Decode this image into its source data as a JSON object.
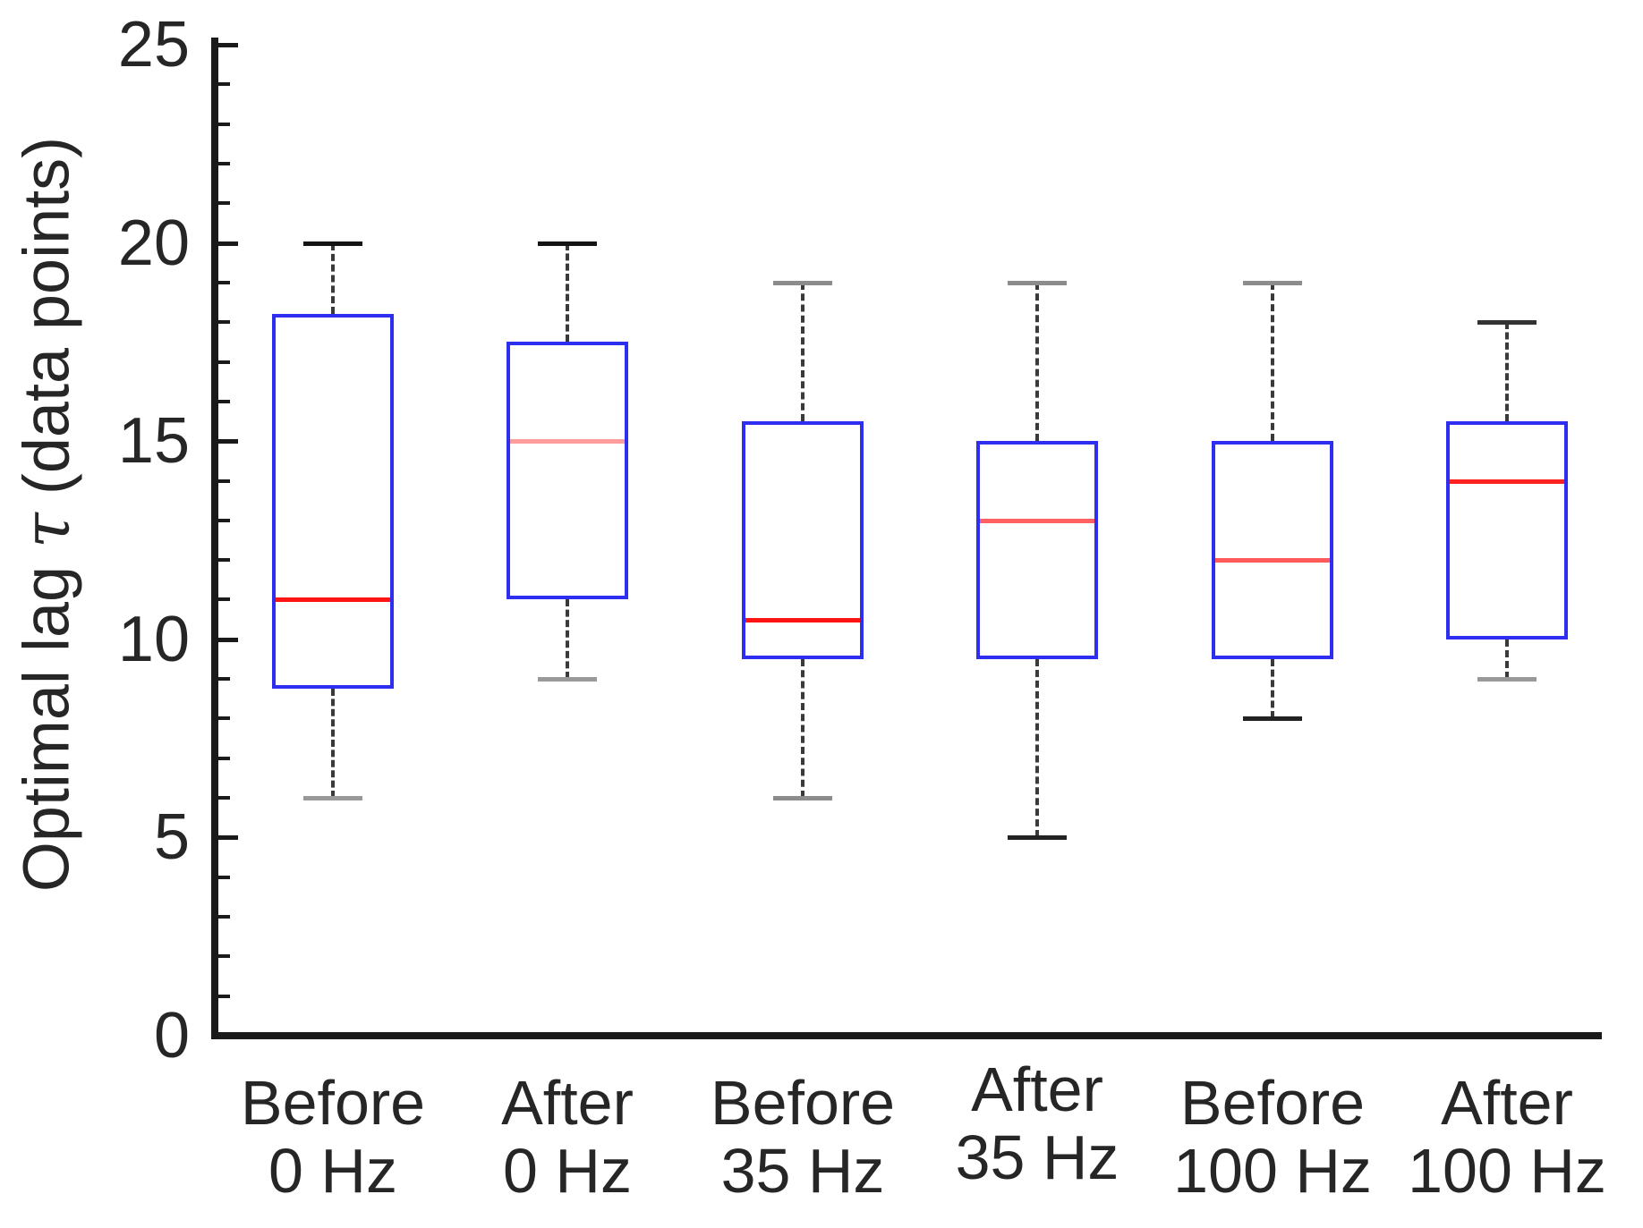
{
  "figure": {
    "background_color": "#ffffff",
    "axis_color": "#1a1a1a",
    "text_color": "#262626",
    "box_edge_color": "#2e2ef0",
    "whisker_color": "#3a3a3a"
  },
  "chart_data": {
    "type": "boxplot",
    "title": "",
    "xlabel": "",
    "ylabel": "Optimal lag τ (data points)",
    "ylabel_parts": {
      "pre": "Optimal lag ",
      "tau": "τ",
      "post": " (data points)"
    },
    "ylim": [
      0,
      25.3
    ],
    "y_major_ticks": [
      0,
      5,
      10,
      15,
      20,
      25
    ],
    "y_minor_tick_step": 1,
    "grid": false,
    "legend": "none",
    "categories": [
      "Before 0 Hz",
      "After 0 Hz",
      "Before 35 Hz",
      "After 35 Hz",
      "Before 100 Hz",
      "After 100 Hz"
    ],
    "boxes": [
      {
        "label_line1": "Before",
        "label_line2": "0 Hz",
        "whisker_low": 6,
        "q1": 8.75,
        "median": 11,
        "q3": 18.2,
        "whisker_high": 20,
        "median_color": "#ff1414",
        "cap_top_color": "#141414",
        "cap_bottom_color": "#999999"
      },
      {
        "label_line1": "After",
        "label_line2": "0 Hz",
        "whisker_low": 9,
        "q1": 11,
        "median": 15,
        "q3": 17.5,
        "whisker_high": 20,
        "median_color": "#ff9c9c",
        "cap_top_color": "#141414",
        "cap_bottom_color": "#999999"
      },
      {
        "label_line1": "Before",
        "label_line2": "35 Hz",
        "whisker_low": 6,
        "q1": 9.5,
        "median": 10.5,
        "q3": 15.5,
        "whisker_high": 19,
        "median_color": "#ff1414",
        "cap_top_color": "#8c8c8c",
        "cap_bottom_color": "#8c8c8c"
      },
      {
        "label_line1": "After",
        "label_line2": "35 Hz",
        "whisker_low": 5,
        "q1": 9.5,
        "median": 13,
        "q3": 15,
        "whisker_high": 19,
        "median_color": "#ff6060",
        "cap_top_color": "#8c8c8c",
        "cap_bottom_color": "#222222"
      },
      {
        "label_line1": "Before",
        "label_line2": "100 Hz",
        "whisker_low": 8,
        "q1": 9.5,
        "median": 12,
        "q3": 15,
        "whisker_high": 19,
        "median_color": "#ff5a5a",
        "cap_top_color": "#8c8c8c",
        "cap_bottom_color": "#222222"
      },
      {
        "label_line1": "After",
        "label_line2": "100 Hz",
        "whisker_low": 9,
        "q1": 10,
        "median": 14,
        "q3": 15.5,
        "whisker_high": 18,
        "median_color": "#ff2020",
        "cap_top_color": "#333333",
        "cap_bottom_color": "#999999"
      }
    ]
  }
}
